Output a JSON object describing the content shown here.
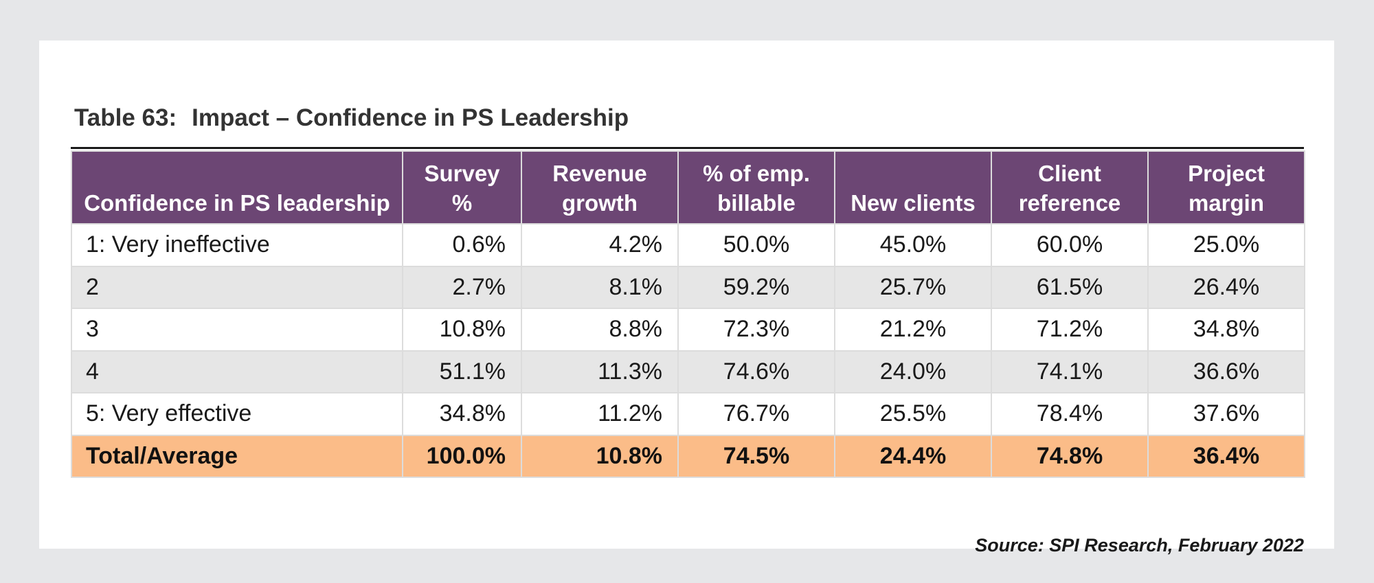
{
  "table": {
    "number_label": "Table 63:",
    "title": "Impact – Confidence in PS Leadership",
    "headers": [
      {
        "lines": [
          "Confidence in PS leadership"
        ]
      },
      {
        "lines": [
          "Survey",
          "%"
        ]
      },
      {
        "lines": [
          "Revenue",
          "growth"
        ]
      },
      {
        "lines": [
          "% of emp.",
          "billable"
        ]
      },
      {
        "lines": [
          "New clients"
        ]
      },
      {
        "lines": [
          "Client",
          "reference"
        ]
      },
      {
        "lines": [
          "Project",
          "margin"
        ]
      }
    ],
    "rows": [
      [
        "1: Very ineffective",
        "0.6%",
        "4.2%",
        "50.0%",
        "45.0%",
        "60.0%",
        "25.0%"
      ],
      [
        "2",
        "2.7%",
        "8.1%",
        "59.2%",
        "25.7%",
        "61.5%",
        "26.4%"
      ],
      [
        "3",
        "10.8%",
        "8.8%",
        "72.3%",
        "21.2%",
        "71.2%",
        "34.8%"
      ],
      [
        "4",
        "51.1%",
        "11.3%",
        "74.6%",
        "24.0%",
        "74.1%",
        "36.6%"
      ],
      [
        "5: Very effective",
        "34.8%",
        "11.2%",
        "76.7%",
        "25.5%",
        "78.4%",
        "37.6%"
      ]
    ],
    "total": [
      "Total/Average",
      "100.0%",
      "10.8%",
      "74.5%",
      "24.4%",
      "74.8%",
      "36.4%"
    ],
    "source": "Source: SPI Research, February 2022"
  },
  "colors": {
    "header_bg": "#6c4674",
    "stripe_bg": "#e6e6e6",
    "total_bg": "#fbbc88",
    "page_bg": "#e6e7e9"
  }
}
